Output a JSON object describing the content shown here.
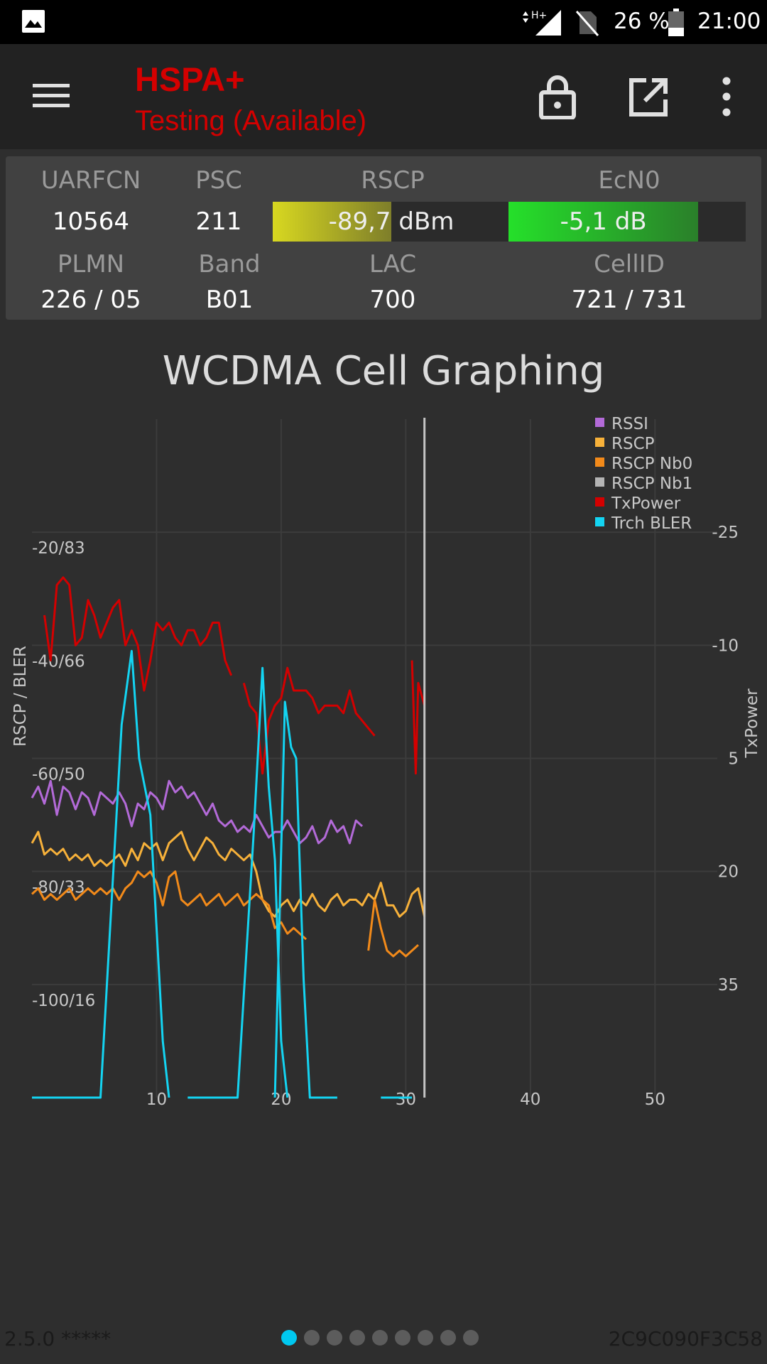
{
  "statusbar": {
    "battery": "26 %",
    "time": "21:00",
    "network_type": "H+",
    "icons": [
      "image-icon",
      "signal-icon",
      "no-sim-icon",
      "battery-icon"
    ]
  },
  "toolbar": {
    "title": "HSPA+",
    "subtitle": "Testing (Available)",
    "accent": "#d40000",
    "icons": [
      "menu-icon",
      "lock-icon",
      "open-external-icon",
      "more-vert-icon"
    ]
  },
  "info": {
    "uarfcn": {
      "label": "UARFCN",
      "value": "10564"
    },
    "psc": {
      "label": "PSC",
      "value": "211"
    },
    "rscp": {
      "label": "RSCP",
      "value": "-89,7",
      "unit": "dBm",
      "level": 0.5
    },
    "ecn0": {
      "label": "EcN0",
      "value": "-5,1 dB",
      "level": 0.8
    },
    "plmn": {
      "label": "PLMN",
      "value": "226 / 05"
    },
    "band": {
      "label": "Band",
      "value": "B01"
    },
    "lac": {
      "label": "LAC",
      "value": "700"
    },
    "cellid": {
      "label": "CellID",
      "value": "721 / 731"
    }
  },
  "chart_data": {
    "type": "line",
    "title": "WCDMA Cell Graphing",
    "ylabel": "RSCP / BLER",
    "y2label": "TxPower",
    "xlim": [
      0,
      55
    ],
    "ylim": [
      -120,
      0
    ],
    "y2lim": [
      50,
      -40
    ],
    "xticks": [
      10,
      20,
      30,
      40,
      50
    ],
    "yticks": [
      {
        "v": -20,
        "label": "-20/83"
      },
      {
        "v": -40,
        "label": "-40/66"
      },
      {
        "v": -60,
        "label": "-60/50"
      },
      {
        "v": -80,
        "label": "-80/33"
      },
      {
        "v": -100,
        "label": "-100/16"
      }
    ],
    "y2ticks": [
      {
        "v": -25,
        "label": "-25"
      },
      {
        "v": -10,
        "label": "-10"
      },
      {
        "v": 5,
        "label": "5"
      },
      {
        "v": 20,
        "label": "20"
      },
      {
        "v": 35,
        "label": "35"
      }
    ],
    "current_x": 31.5,
    "grid": true,
    "legend_position": "top-right",
    "series": [
      {
        "name": "RSSI",
        "color": "#b36ad8",
        "axis": "left",
        "segments": [
          [
            [
              0,
              -67
            ],
            [
              0.5,
              -65
            ],
            [
              1,
              -68
            ],
            [
              1.5,
              -64
            ],
            [
              2,
              -70
            ],
            [
              2.5,
              -65
            ],
            [
              3,
              -66
            ],
            [
              3.5,
              -69
            ],
            [
              4,
              -66
            ],
            [
              4.5,
              -67
            ],
            [
              5,
              -70
            ],
            [
              5.5,
              -66
            ],
            [
              6,
              -67
            ],
            [
              6.5,
              -68
            ],
            [
              7,
              -66
            ],
            [
              7.5,
              -68
            ],
            [
              8,
              -72
            ],
            [
              8.5,
              -68
            ],
            [
              9,
              -69
            ],
            [
              9.5,
              -66
            ],
            [
              10,
              -67
            ],
            [
              10.5,
              -69
            ],
            [
              11,
              -64
            ],
            [
              11.5,
              -66
            ],
            [
              12,
              -65
            ],
            [
              12.5,
              -67
            ],
            [
              13,
              -66
            ],
            [
              13.5,
              -68
            ],
            [
              14,
              -70
            ],
            [
              14.5,
              -68
            ],
            [
              15,
              -71
            ],
            [
              15.5,
              -72
            ],
            [
              16,
              -71
            ],
            [
              16.5,
              -73
            ],
            [
              17,
              -72
            ],
            [
              17.5,
              -73
            ],
            [
              18,
              -70
            ],
            [
              18.5,
              -72
            ],
            [
              19,
              -74
            ],
            [
              19.5,
              -73
            ],
            [
              20,
              -73
            ],
            [
              20.5,
              -71
            ],
            [
              21,
              -73
            ],
            [
              21.5,
              -75
            ],
            [
              22,
              -74
            ],
            [
              22.5,
              -72
            ],
            [
              23,
              -75
            ],
            [
              23.5,
              -74
            ],
            [
              24,
              -71
            ],
            [
              24.5,
              -73
            ],
            [
              25,
              -72
            ],
            [
              25.5,
              -75
            ],
            [
              26,
              -71
            ],
            [
              26.5,
              -72
            ]
          ]
        ]
      },
      {
        "name": "RSCP",
        "color": "#f7b13a",
        "axis": "left",
        "segments": [
          [
            [
              0,
              -75
            ],
            [
              0.5,
              -73
            ],
            [
              1,
              -77
            ],
            [
              1.5,
              -76
            ],
            [
              2,
              -77
            ],
            [
              2.5,
              -76
            ],
            [
              3,
              -78
            ],
            [
              3.5,
              -77
            ],
            [
              4,
              -78
            ],
            [
              4.5,
              -77
            ],
            [
              5,
              -79
            ],
            [
              5.5,
              -78
            ],
            [
              6,
              -79
            ],
            [
              6.5,
              -78
            ],
            [
              7,
              -77
            ],
            [
              7.5,
              -79
            ],
            [
              8,
              -76
            ],
            [
              8.5,
              -78
            ],
            [
              9,
              -75
            ],
            [
              9.5,
              -76
            ],
            [
              10,
              -75
            ],
            [
              10.5,
              -78
            ],
            [
              11,
              -75
            ],
            [
              11.5,
              -74
            ],
            [
              12,
              -73
            ],
            [
              12.5,
              -76
            ],
            [
              13,
              -78
            ],
            [
              13.5,
              -76
            ],
            [
              14,
              -74
            ],
            [
              14.5,
              -75
            ],
            [
              15,
              -77
            ],
            [
              15.5,
              -78
            ],
            [
              16,
              -76
            ],
            [
              16.5,
              -77
            ],
            [
              17,
              -78
            ],
            [
              17.5,
              -77
            ],
            [
              18,
              -80
            ],
            [
              18.5,
              -85
            ],
            [
              19,
              -87
            ],
            [
              19.5,
              -88
            ],
            [
              20,
              -86
            ],
            [
              20.5,
              -85
            ],
            [
              21,
              -87
            ],
            [
              21.5,
              -85
            ],
            [
              22,
              -86
            ],
            [
              22.5,
              -84
            ],
            [
              23,
              -86
            ],
            [
              23.5,
              -87
            ],
            [
              24,
              -85
            ],
            [
              24.5,
              -84
            ],
            [
              25,
              -86
            ],
            [
              25.5,
              -85
            ],
            [
              26,
              -85
            ],
            [
              26.5,
              -86
            ],
            [
              27,
              -84
            ],
            [
              27.5,
              -85
            ],
            [
              28,
              -82
            ],
            [
              28.5,
              -86
            ],
            [
              29,
              -86
            ],
            [
              29.5,
              -88
            ],
            [
              30,
              -87
            ],
            [
              30.5,
              -84
            ],
            [
              31,
              -83
            ],
            [
              31.5,
              -88
            ]
          ]
        ]
      },
      {
        "name": "RSCP Nb0",
        "color": "#f28a1a",
        "axis": "left",
        "segments": [
          [
            [
              0,
              -84
            ],
            [
              0.5,
              -83
            ],
            [
              1,
              -85
            ],
            [
              1.5,
              -84
            ],
            [
              2,
              -85
            ],
            [
              2.5,
              -84
            ],
            [
              3,
              -83
            ],
            [
              3.5,
              -85
            ],
            [
              4,
              -84
            ],
            [
              4.5,
              -83
            ],
            [
              5,
              -84
            ],
            [
              5.5,
              -83
            ],
            [
              6,
              -84
            ],
            [
              6.5,
              -83
            ],
            [
              7,
              -85
            ],
            [
              7.5,
              -83
            ],
            [
              8,
              -82
            ],
            [
              8.5,
              -80
            ],
            [
              9,
              -81
            ],
            [
              9.5,
              -80
            ],
            [
              10,
              -82
            ],
            [
              10.5,
              -86
            ],
            [
              11,
              -81
            ],
            [
              11.5,
              -80
            ],
            [
              12,
              -85
            ],
            [
              12.5,
              -86
            ],
            [
              13,
              -85
            ],
            [
              13.5,
              -84
            ],
            [
              14,
              -86
            ],
            [
              14.5,
              -85
            ],
            [
              15,
              -84
            ],
            [
              15.5,
              -86
            ],
            [
              16,
              -85
            ],
            [
              16.5,
              -84
            ],
            [
              17,
              -86
            ],
            [
              17.5,
              -85
            ],
            [
              18,
              -84
            ],
            [
              18.5,
              -85
            ],
            [
              19,
              -86
            ],
            [
              19.5,
              -90
            ],
            [
              20,
              -89
            ],
            [
              20.5,
              -91
            ],
            [
              21,
              -90
            ],
            [
              21.5,
              -91
            ],
            [
              22,
              -92
            ]
          ],
          [
            [
              27,
              -94
            ],
            [
              27.5,
              -85
            ],
            [
              28,
              -90
            ],
            [
              28.5,
              -94
            ],
            [
              29,
              -95
            ],
            [
              29.5,
              -94
            ],
            [
              30,
              -95
            ],
            [
              30.5,
              -94
            ],
            [
              31,
              -93
            ]
          ]
        ]
      },
      {
        "name": "RSCP Nb1",
        "color": "#b4b4b4",
        "axis": "left",
        "segments": []
      },
      {
        "name": "TxPower",
        "color": "#d40000",
        "axis": "right",
        "segments": [
          [
            [
              1,
              -14
            ],
            [
              1.5,
              -8
            ],
            [
              2,
              -18
            ],
            [
              2.5,
              -19
            ],
            [
              3,
              -18
            ],
            [
              3.5,
              -10
            ],
            [
              4,
              -11
            ],
            [
              4.5,
              -16
            ],
            [
              5,
              -14
            ],
            [
              5.5,
              -11
            ],
            [
              6,
              -13
            ],
            [
              6.5,
              -15
            ],
            [
              7,
              -16
            ],
            [
              7.5,
              -10
            ],
            [
              8,
              -12
            ],
            [
              8.5,
              -10
            ],
            [
              9,
              -4
            ],
            [
              9.5,
              -8
            ],
            [
              10,
              -13
            ],
            [
              10.5,
              -12
            ],
            [
              11,
              -13
            ],
            [
              11.5,
              -11
            ],
            [
              12,
              -10
            ],
            [
              12.5,
              -12
            ],
            [
              13,
              -12
            ],
            [
              13.5,
              -10
            ],
            [
              14,
              -11
            ],
            [
              14.5,
              -13
            ],
            [
              15,
              -13
            ],
            [
              15.5,
              -8
            ],
            [
              16,
              -6
            ]
          ],
          [
            [
              17,
              -5
            ],
            [
              17.5,
              -2
            ],
            [
              18,
              -1
            ],
            [
              18.5,
              7
            ],
            [
              19,
              0
            ],
            [
              19.5,
              -2
            ],
            [
              20,
              -3
            ],
            [
              20.5,
              -7
            ],
            [
              21,
              -4
            ],
            [
              21.5,
              -4
            ],
            [
              22,
              -4
            ],
            [
              22.5,
              -3
            ],
            [
              23,
              -1
            ],
            [
              23.5,
              -2
            ],
            [
              24,
              -2
            ],
            [
              24.5,
              -2
            ],
            [
              25,
              -1
            ],
            [
              25.5,
              -4
            ],
            [
              26,
              -1
            ],
            [
              26.5,
              0
            ],
            [
              27,
              1
            ],
            [
              27.5,
              2
            ]
          ],
          [
            [
              30.5,
              -8
            ],
            [
              30.8,
              7
            ],
            [
              31,
              -5
            ],
            [
              31.5,
              -2
            ]
          ]
        ]
      },
      {
        "name": "Trch BLER",
        "color": "#14d4f2",
        "axis": "left",
        "segments": [
          [
            [
              0,
              -120
            ],
            [
              5.5,
              -120
            ],
            [
              7.2,
              -54
            ],
            [
              8,
              -41
            ],
            [
              8.6,
              -60
            ],
            [
              9.5,
              -70
            ],
            [
              10.5,
              -110
            ],
            [
              11,
              -120
            ]
          ],
          [
            [
              12.5,
              -120
            ],
            [
              16.5,
              -120
            ],
            [
              17.8,
              -73
            ],
            [
              18.5,
              -44
            ],
            [
              19,
              -65
            ],
            [
              19.5,
              -78
            ],
            [
              20,
              -110
            ],
            [
              20.5,
              -120
            ]
          ],
          [
            [
              19.5,
              -120
            ],
            [
              20.3,
              -50
            ],
            [
              20.8,
              -58
            ],
            [
              21.2,
              -60
            ],
            [
              21.8,
              -99
            ],
            [
              22.3,
              -120
            ],
            [
              24.5,
              -120
            ]
          ],
          [
            [
              28,
              -120
            ],
            [
              30.5,
              -120
            ]
          ]
        ]
      }
    ]
  },
  "footer": {
    "version": "2.5.0 *****",
    "device_id": "2C9C090F3C58",
    "page_count": 9,
    "active_page": 0
  }
}
